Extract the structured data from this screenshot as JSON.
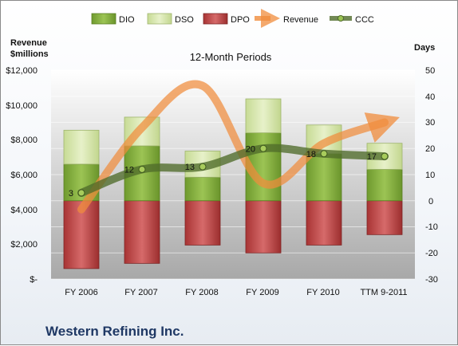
{
  "footer": {
    "company": "Western Refining Inc."
  },
  "chart_data": {
    "type": "bar",
    "title": "12-Month Periods",
    "categories": [
      "FY 2006",
      "FY 2007",
      "FY 2008",
      "FY 2009",
      "FY 2010",
      "TTM 9-2011"
    ],
    "left_axis": {
      "label_line1": "Revenue",
      "label_line2": "$millions",
      "ticks": [
        "$-",
        "$2,000",
        "$4,000",
        "$6,000",
        "$8,000",
        "$10,000",
        "$12,000"
      ],
      "range": [
        0,
        12000
      ]
    },
    "right_axis": {
      "label": "Days",
      "ticks": [
        "-30",
        "-20",
        "-10",
        "0",
        "10",
        "20",
        "30",
        "40",
        "50"
      ],
      "range": [
        -30,
        50
      ]
    },
    "legend": [
      "DIO",
      "DSO",
      "DPO",
      "Revenue",
      "CCC"
    ],
    "legend_position": "top",
    "series": [
      {
        "name": "DPO",
        "axis": "days",
        "kind": "bar-below-zero",
        "values": [
          26,
          24,
          17,
          20,
          17,
          13
        ],
        "color": "#b03a3a"
      },
      {
        "name": "DIO",
        "axis": "days",
        "kind": "bar-stacked",
        "values": [
          14,
          21,
          9,
          26,
          18,
          12
        ],
        "color": "#7aa33a"
      },
      {
        "name": "DSO",
        "axis": "days",
        "kind": "bar-stacked",
        "values": [
          13,
          11,
          10,
          13,
          11,
          10
        ],
        "color": "#cfe0a1"
      },
      {
        "name": "Revenue",
        "axis": "revenue",
        "kind": "line",
        "values": [
          4000,
          8700,
          11100,
          5500,
          7800,
          9000
        ],
        "color": "#f08c3c"
      },
      {
        "name": "CCC",
        "axis": "days",
        "kind": "line-marker",
        "values": [
          3,
          12,
          13,
          20,
          18,
          17
        ],
        "labels": [
          "3",
          "12",
          "13",
          "20",
          "18",
          "17"
        ],
        "color": "#4f6b2a"
      }
    ],
    "grid": true
  }
}
